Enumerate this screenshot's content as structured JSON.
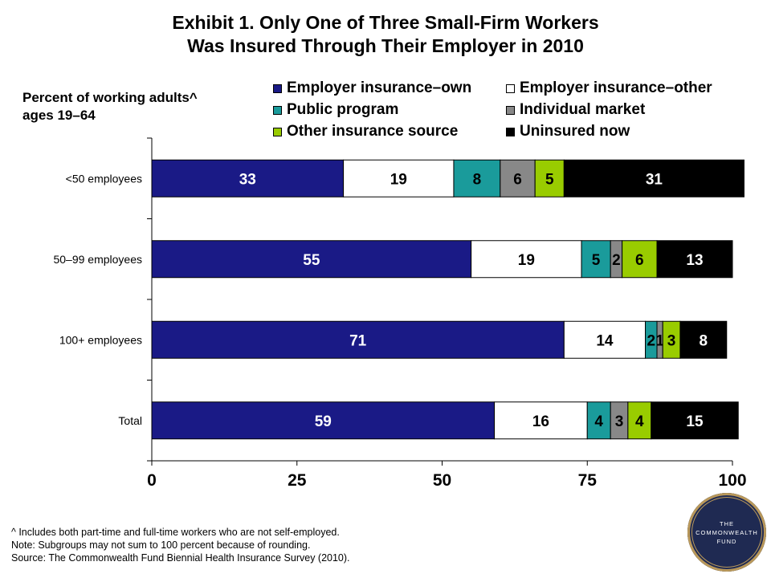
{
  "chart_data": {
    "type": "bar",
    "orientation": "horizontal",
    "stacked": true,
    "title_line1": "Exhibit 1. Only One of Three Small-Firm Workers",
    "title_line2": "Was Insured Through Their Employer in 2010",
    "ylabel_line1": "Percent of working adults^",
    "ylabel_line2": "ages 19–64",
    "xlim": [
      0,
      100
    ],
    "xticks": [
      "0",
      "25",
      "50",
      "75",
      "100"
    ],
    "categories": [
      "<50 employees",
      "50–99 employees",
      "100+ employees",
      "Total"
    ],
    "series": [
      {
        "name": "Employer insurance–own",
        "color": "#1a1a86",
        "label_color": "#ffffff",
        "values": [
          33,
          55,
          71,
          59
        ]
      },
      {
        "name": "Employer insurance–other",
        "color": "#ffffff",
        "label_color": "#000000",
        "values": [
          19,
          19,
          14,
          16
        ]
      },
      {
        "name": "Public program",
        "color": "#1a9b9b",
        "label_color": "#000000",
        "values": [
          8,
          5,
          2,
          4
        ]
      },
      {
        "name": "Individual market",
        "color": "#888888",
        "label_color": "#000000",
        "values": [
          6,
          2,
          1,
          3
        ]
      },
      {
        "name": "Other insurance source",
        "color": "#99cc00",
        "label_color": "#000000",
        "values": [
          5,
          6,
          3,
          4
        ]
      },
      {
        "name": "Uninsured now",
        "color": "#000000",
        "label_color": "#ffffff",
        "values": [
          31,
          13,
          8,
          15
        ]
      }
    ],
    "legend_position": "top-right",
    "grid": false
  },
  "notes": {
    "line1": "^ Includes both part-time and full-time workers who are not self-employed.",
    "line2": "Note: Subgroups may not sum to 100 percent because of rounding.",
    "line3": "Source: The Commonwealth Fund Biennial Health Insurance Survey (2010)."
  },
  "logo": {
    "line1": "THE",
    "line2": "COMMONWEALTH",
    "line3": "FUND",
    "color": "#1f2a52",
    "accent": "#b9985a"
  }
}
